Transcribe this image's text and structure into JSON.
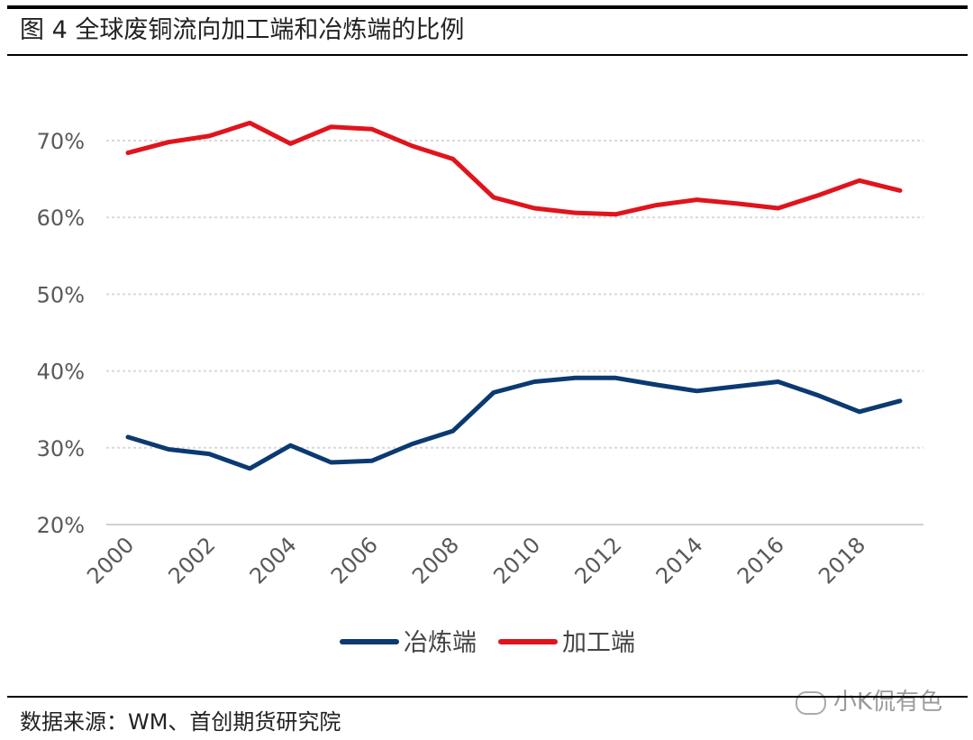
{
  "header": {
    "title": "图 4 全球废铜流向加工端和冶炼端的比例"
  },
  "footer": {
    "source": "数据来源：WM、首创期货研究院",
    "watermark": "小K侃有色"
  },
  "chart_data": {
    "type": "line",
    "title": "",
    "xlabel": "",
    "ylabel": "",
    "ylim": [
      20,
      70
    ],
    "y_ticks": [
      "20%",
      "30%",
      "40%",
      "50%",
      "60%",
      "70%"
    ],
    "x": [
      2000,
      2001,
      2002,
      2003,
      2004,
      2005,
      2006,
      2007,
      2008,
      2009,
      2010,
      2011,
      2012,
      2013,
      2014,
      2015,
      2016,
      2017,
      2018,
      2019
    ],
    "x_tick_labels": [
      "2000",
      "2002",
      "2004",
      "2006",
      "2008",
      "2010",
      "2012",
      "2014",
      "2016",
      "2018"
    ],
    "series": [
      {
        "name": "冶炼端",
        "color": "#0b3a72",
        "values": [
          31.4,
          29.8,
          29.2,
          27.3,
          30.3,
          28.1,
          28.3,
          30.5,
          32.2,
          37.2,
          38.6,
          39.1,
          39.1,
          38.2,
          37.4,
          38.0,
          38.6,
          36.8,
          34.7,
          36.1
        ]
      },
      {
        "name": "加工端",
        "color": "#e0141c",
        "values": [
          68.4,
          69.8,
          70.6,
          72.3,
          69.6,
          71.8,
          71.5,
          69.3,
          67.6,
          62.6,
          61.2,
          60.6,
          60.4,
          61.6,
          62.3,
          61.8,
          61.2,
          62.9,
          64.8,
          63.5
        ]
      }
    ],
    "grid": true,
    "legend_position": "bottom"
  }
}
